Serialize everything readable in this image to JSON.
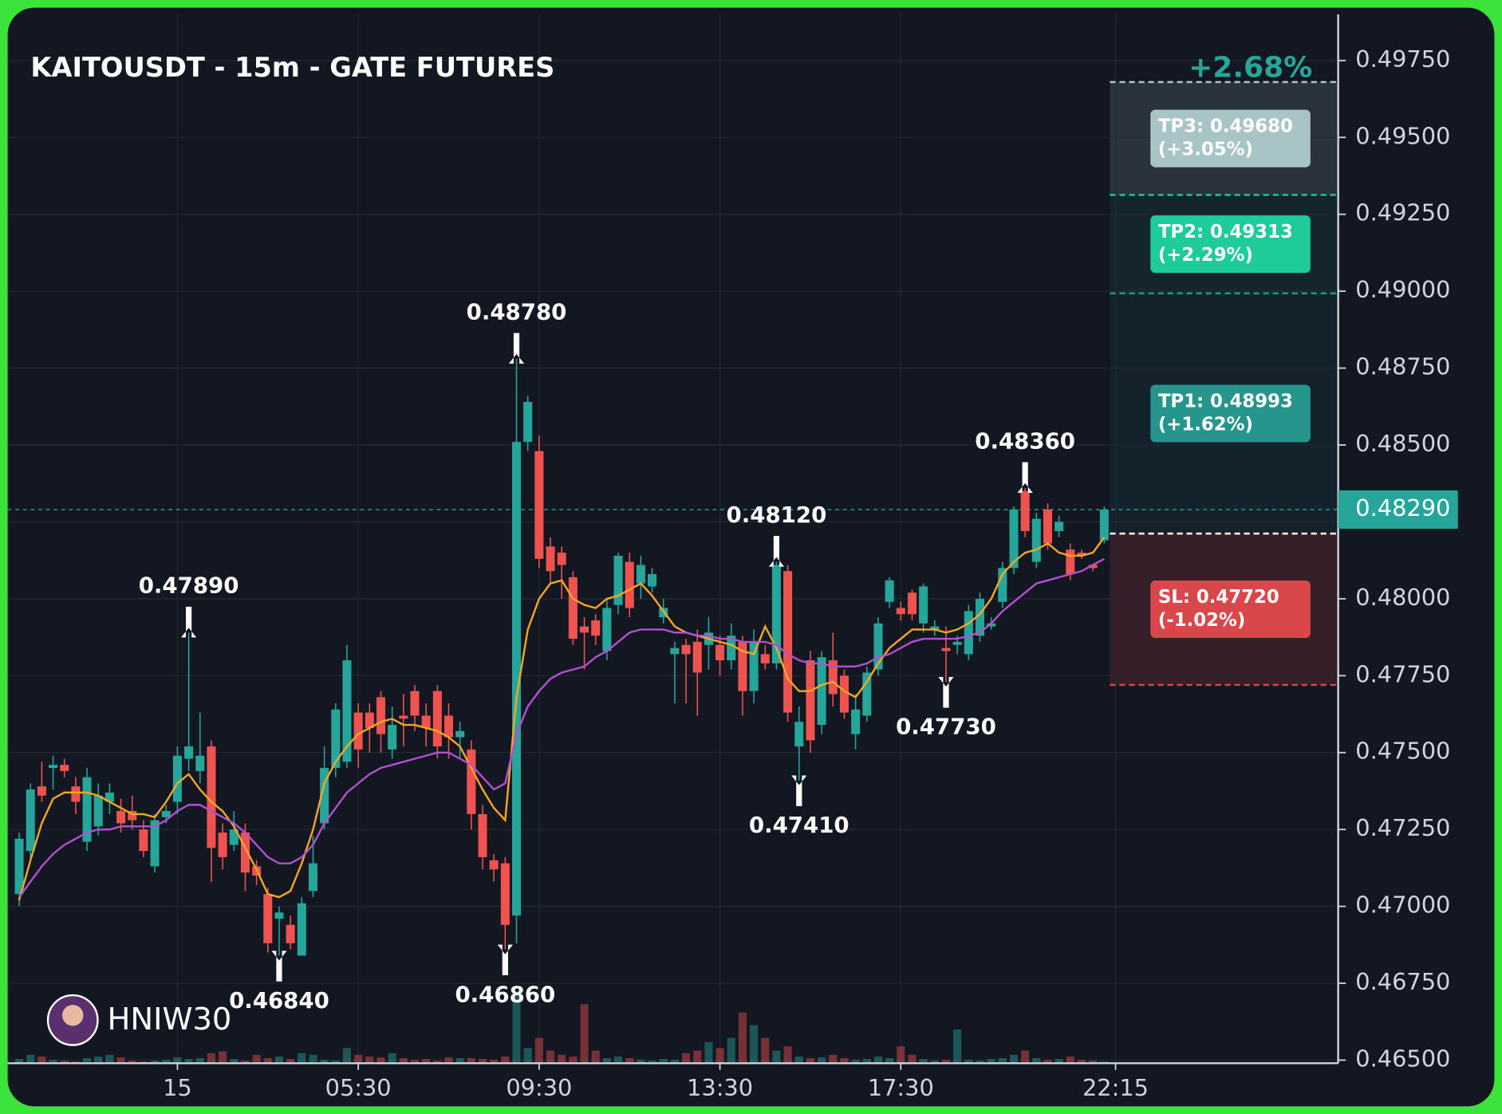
{
  "chart_data": {
    "type": "candlestick",
    "title": "KAITOUSDT - 15m - GATE FUTURES",
    "watermark": "HNIW30",
    "total_change": "+2.68%",
    "up_color": "#26a69a",
    "down_color": "#ef5350",
    "grid": true,
    "xlim": [
      -1.02,
      116.7
    ],
    "ylim": [
      0.4649,
      0.499
    ],
    "yticks": [
      {
        "value": 0.4975,
        "label": "0.49750"
      },
      {
        "value": 0.495,
        "label": "0.49500"
      },
      {
        "value": 0.4925,
        "label": "0.49250"
      },
      {
        "value": 0.49,
        "label": "0.49000"
      },
      {
        "value": 0.4875,
        "label": "0.48750"
      },
      {
        "value": 0.485,
        "label": "0.48500"
      },
      {
        "value": 0.4825,
        "label": "0.48250"
      },
      {
        "value": 0.48,
        "label": "0.48000"
      },
      {
        "value": 0.4775,
        "label": "0.47750"
      },
      {
        "value": 0.475,
        "label": "0.47500"
      },
      {
        "value": 0.4725,
        "label": "0.47250"
      },
      {
        "value": 0.47,
        "label": "0.47000"
      },
      {
        "value": 0.4675,
        "label": "0.46750"
      },
      {
        "value": 0.465,
        "label": "0.46500"
      }
    ],
    "xticks": [
      {
        "value": 14,
        "label": "15"
      },
      {
        "value": 30,
        "label": "05:30"
      },
      {
        "value": 46,
        "label": "09:30"
      },
      {
        "value": 62,
        "label": "13:30"
      },
      {
        "value": 78,
        "label": "17:30"
      },
      {
        "value": 97,
        "label": "22:15"
      }
    ],
    "open": [
      0.4704,
      0.4718,
      0.4739,
      0.4745,
      0.4746,
      0.4739,
      0.4721,
      0.4726,
      0.4734,
      0.4731,
      0.4731,
      0.4725,
      0.4713,
      0.4729,
      0.4734,
      0.4748,
      0.4744,
      0.4752,
      0.4724,
      0.472,
      0.4724,
      0.4713,
      0.4704,
      0.4696,
      0.4694,
      0.4684,
      0.4705,
      0.4727,
      0.4745,
      0.4747,
      0.4763,
      0.4763,
      0.4768,
      0.4751,
      0.4762,
      0.477,
      0.4762,
      0.477,
      0.4762,
      0.4755,
      0.4751,
      0.473,
      0.4715,
      0.4714,
      0.4697,
      0.4851,
      0.4848,
      0.4817,
      0.4815,
      0.4807,
      0.4791,
      0.4793,
      0.4783,
      0.4798,
      0.4812,
      0.4805,
      0.4804,
      0.4794,
      0.4782,
      0.4785,
      0.4786,
      0.4785,
      0.4785,
      0.478,
      0.4786,
      0.477,
      0.4782,
      0.4779,
      0.4809,
      0.4752,
      0.478,
      0.4759,
      0.478,
      0.4775,
      0.4756,
      0.4762,
      0.4777,
      0.4799,
      0.4797,
      0.4802,
      0.4792,
      0.479,
      0.4784,
      0.4785,
      0.4782,
      0.4788,
      0.4791,
      0.4799,
      0.481,
      0.4835,
      0.4812,
      0.4829,
      0.4822,
      0.4816,
      0.4815,
      0.4811,
      0.4819
    ],
    "high": [
      0.4724,
      0.474,
      0.4747,
      0.4749,
      0.4748,
      0.4742,
      0.4745,
      0.474,
      0.474,
      0.4735,
      0.4736,
      0.4728,
      0.473,
      0.4733,
      0.4752,
      0.4789,
      0.4763,
      0.4754,
      0.4727,
      0.4731,
      0.4727,
      0.4715,
      0.4706,
      0.47,
      0.4697,
      0.4703,
      0.4723,
      0.4752,
      0.4766,
      0.4785,
      0.4766,
      0.4766,
      0.477,
      0.4765,
      0.4769,
      0.4772,
      0.4766,
      0.4772,
      0.4766,
      0.476,
      0.4754,
      0.4733,
      0.4717,
      0.4716,
      0.4878,
      0.4866,
      0.4853,
      0.482,
      0.4817,
      0.4809,
      0.4794,
      0.4795,
      0.48,
      0.4815,
      0.4815,
      0.4814,
      0.481,
      0.48,
      0.4786,
      0.4787,
      0.479,
      0.4794,
      0.4788,
      0.4792,
      0.4788,
      0.479,
      0.4785,
      0.4812,
      0.4811,
      0.4765,
      0.4783,
      0.4783,
      0.4789,
      0.4777,
      0.4769,
      0.4778,
      0.4794,
      0.4807,
      0.4799,
      0.4803,
      0.4805,
      0.4793,
      0.4791,
      0.4788,
      0.4798,
      0.4802,
      0.4794,
      0.4812,
      0.483,
      0.4836,
      0.4828,
      0.4831,
      0.4827,
      0.4818,
      0.4816,
      0.4811,
      0.483
    ],
    "low": [
      0.47,
      0.4715,
      0.4734,
      0.4738,
      0.4742,
      0.473,
      0.4718,
      0.4723,
      0.473,
      0.4724,
      0.4725,
      0.4716,
      0.4711,
      0.4727,
      0.473,
      0.4744,
      0.474,
      0.4708,
      0.4712,
      0.4718,
      0.4705,
      0.4707,
      0.4685,
      0.4684,
      0.4686,
      0.4684,
      0.4703,
      0.4725,
      0.4742,
      0.4745,
      0.4745,
      0.475,
      0.475,
      0.4748,
      0.4752,
      0.4757,
      0.4752,
      0.4748,
      0.4748,
      0.4748,
      0.4725,
      0.4712,
      0.4708,
      0.4686,
      0.4688,
      0.4848,
      0.481,
      0.4805,
      0.48,
      0.4785,
      0.4777,
      0.4785,
      0.478,
      0.4795,
      0.4794,
      0.48,
      0.4802,
      0.4792,
      0.4766,
      0.4766,
      0.4762,
      0.4777,
      0.4775,
      0.4777,
      0.4762,
      0.4766,
      0.4777,
      0.4777,
      0.476,
      0.4741,
      0.475,
      0.4756,
      0.4765,
      0.4761,
      0.4751,
      0.476,
      0.4775,
      0.4797,
      0.4793,
      0.4793,
      0.4789,
      0.4788,
      0.4773,
      0.4782,
      0.478,
      0.4786,
      0.479,
      0.4797,
      0.4808,
      0.482,
      0.481,
      0.4816,
      0.482,
      0.4806,
      0.4813,
      0.4809,
      0.4818
    ],
    "close": [
      0.4722,
      0.4738,
      0.4736,
      0.4746,
      0.4744,
      0.4734,
      0.4742,
      0.4736,
      0.4737,
      0.4727,
      0.4728,
      0.4718,
      0.4728,
      0.4731,
      0.4749,
      0.4752,
      0.4749,
      0.4719,
      0.4716,
      0.4725,
      0.4711,
      0.471,
      0.4688,
      0.4698,
      0.4688,
      0.4701,
      0.4714,
      0.4745,
      0.4764,
      0.478,
      0.4751,
      0.4758,
      0.4756,
      0.4759,
      0.4761,
      0.4762,
      0.4758,
      0.4752,
      0.4755,
      0.4757,
      0.473,
      0.4716,
      0.4712,
      0.4694,
      0.4851,
      0.4864,
      0.4813,
      0.4809,
      0.4811,
      0.4787,
      0.4789,
      0.4788,
      0.4797,
      0.4814,
      0.4797,
      0.4811,
      0.4808,
      0.4797,
      0.4784,
      0.4782,
      0.4776,
      0.4789,
      0.478,
      0.4788,
      0.477,
      0.4786,
      0.4779,
      0.4811,
      0.4763,
      0.476,
      0.4754,
      0.4781,
      0.4769,
      0.4763,
      0.4764,
      0.4776,
      0.4792,
      0.4806,
      0.4795,
      0.4795,
      0.4804,
      0.4791,
      0.4783,
      0.4786,
      0.4796,
      0.48,
      0.4792,
      0.481,
      0.4829,
      0.4822,
      0.4826,
      0.4818,
      0.4825,
      0.4808,
      0.4814,
      0.481,
      0.4829
    ],
    "volume": [
      5,
      10,
      8,
      4,
      3,
      2,
      6,
      8,
      10,
      7,
      3,
      2,
      3,
      4,
      7,
      5,
      6,
      12,
      14,
      5,
      3,
      10,
      6,
      8,
      5,
      12,
      10,
      4,
      3,
      18,
      10,
      8,
      7,
      12,
      6,
      4,
      5,
      3,
      7,
      6,
      6,
      5,
      4,
      8,
      85,
      18,
      30,
      15,
      10,
      8,
      70,
      15,
      6,
      8,
      6,
      4,
      3,
      5,
      4,
      12,
      15,
      25,
      18,
      30,
      60,
      45,
      30,
      15,
      20,
      8,
      6,
      7,
      10,
      6,
      4,
      5,
      8,
      6,
      20,
      10,
      5,
      3,
      4,
      40,
      4,
      3,
      5,
      6,
      10,
      15,
      6,
      4,
      5,
      8,
      4,
      3,
      2
    ],
    "lines": [
      {
        "color": "#f5a623",
        "values": [
          0.4702,
          0.4715,
          0.4727,
          0.4735,
          0.4737,
          0.4737,
          0.4737,
          0.4736,
          0.4734,
          0.4732,
          0.473,
          0.473,
          0.4729,
          0.4734,
          0.474,
          0.4743,
          0.4738,
          0.4734,
          0.4731,
          0.4726,
          0.4719,
          0.4712,
          0.4704,
          0.4703,
          0.4705,
          0.4714,
          0.4725,
          0.474,
          0.4747,
          0.4752,
          0.4756,
          0.4758,
          0.476,
          0.4761,
          0.4759,
          0.4759,
          0.4758,
          0.4757,
          0.4755,
          0.4752,
          0.4745,
          0.4738,
          0.4732,
          0.4728,
          0.4768,
          0.479,
          0.48,
          0.4805,
          0.4806,
          0.48,
          0.4798,
          0.4797,
          0.48,
          0.4801,
          0.4803,
          0.4805,
          0.4801,
          0.4796,
          0.4791,
          0.4789,
          0.4788,
          0.4787,
          0.4786,
          0.4785,
          0.4783,
          0.4782,
          0.4791,
          0.4784,
          0.4774,
          0.477,
          0.477,
          0.4772,
          0.4773,
          0.477,
          0.4768,
          0.4773,
          0.4779,
          0.4784,
          0.4787,
          0.479,
          0.479,
          0.479,
          0.4789,
          0.479,
          0.4792,
          0.4795,
          0.48,
          0.4808,
          0.4812,
          0.4815,
          0.4816,
          0.4818,
          0.4815,
          0.4814,
          0.4814,
          0.4815,
          0.482
        ]
      },
      {
        "color": "#b44fd1",
        "values": [
          0.4703,
          0.4708,
          0.4713,
          0.4717,
          0.472,
          0.4722,
          0.4724,
          0.4725,
          0.4725,
          0.4726,
          0.4726,
          0.4726,
          0.4726,
          0.4728,
          0.4731,
          0.4733,
          0.4733,
          0.4731,
          0.4729,
          0.4727,
          0.4724,
          0.472,
          0.4716,
          0.4714,
          0.4714,
          0.4716,
          0.472,
          0.4727,
          0.4732,
          0.4737,
          0.474,
          0.4743,
          0.4745,
          0.4746,
          0.4747,
          0.4748,
          0.4749,
          0.475,
          0.475,
          0.4748,
          0.4746,
          0.4742,
          0.4738,
          0.474,
          0.4756,
          0.4765,
          0.477,
          0.4774,
          0.4776,
          0.4777,
          0.4778,
          0.4781,
          0.4783,
          0.4786,
          0.4789,
          0.479,
          0.479,
          0.479,
          0.4789,
          0.4789,
          0.4788,
          0.4788,
          0.4787,
          0.4787,
          0.4786,
          0.4786,
          0.4786,
          0.4785,
          0.4782,
          0.478,
          0.4779,
          0.4779,
          0.4778,
          0.4778,
          0.4778,
          0.4779,
          0.4781,
          0.4782,
          0.4784,
          0.4786,
          0.4787,
          0.4787,
          0.4787,
          0.4787,
          0.4788,
          0.4789,
          0.4792,
          0.4796,
          0.4799,
          0.4802,
          0.4805,
          0.4806,
          0.4807,
          0.4808,
          0.4809,
          0.4811,
          0.4813
        ]
      }
    ],
    "annotations": [
      {
        "label": "0.47890",
        "value": 0.4789,
        "index": 15,
        "kind": "high"
      },
      {
        "label": "0.46840",
        "value": 0.4684,
        "index": 23,
        "kind": "low"
      },
      {
        "label": "0.46860",
        "value": 0.4686,
        "index": 43,
        "kind": "low"
      },
      {
        "label": "0.48780",
        "value": 0.4878,
        "index": 44,
        "kind": "high"
      },
      {
        "label": "0.48120",
        "value": 0.4812,
        "index": 67,
        "kind": "high"
      },
      {
        "label": "0.47410",
        "value": 0.4741,
        "index": 69,
        "kind": "low"
      },
      {
        "label": "0.47730",
        "value": 0.4773,
        "index": 82,
        "kind": "low"
      },
      {
        "label": "0.48360",
        "value": 0.4836,
        "index": 89,
        "kind": "high"
      }
    ],
    "last_price": {
      "value": 0.4829,
      "label": "0.48290"
    },
    "entry": 0.48212,
    "targets": [
      {
        "label": "TP3: 0.49680",
        "pct": "(+3.05%)",
        "value": 0.4968,
        "color": "#a9c4c6"
      },
      {
        "label": "TP2: 0.49313",
        "pct": "(+2.29%)",
        "value": 0.49313,
        "color": "#1ecb9a"
      },
      {
        "label": "TP1: 0.48993",
        "pct": "(+1.62%)",
        "value": 0.48993,
        "color": "#26968c"
      }
    ],
    "stop": {
      "label": "SL: 0.47720",
      "pct": "(-1.02%)",
      "value": 0.4772,
      "color": "#d9474a"
    }
  }
}
